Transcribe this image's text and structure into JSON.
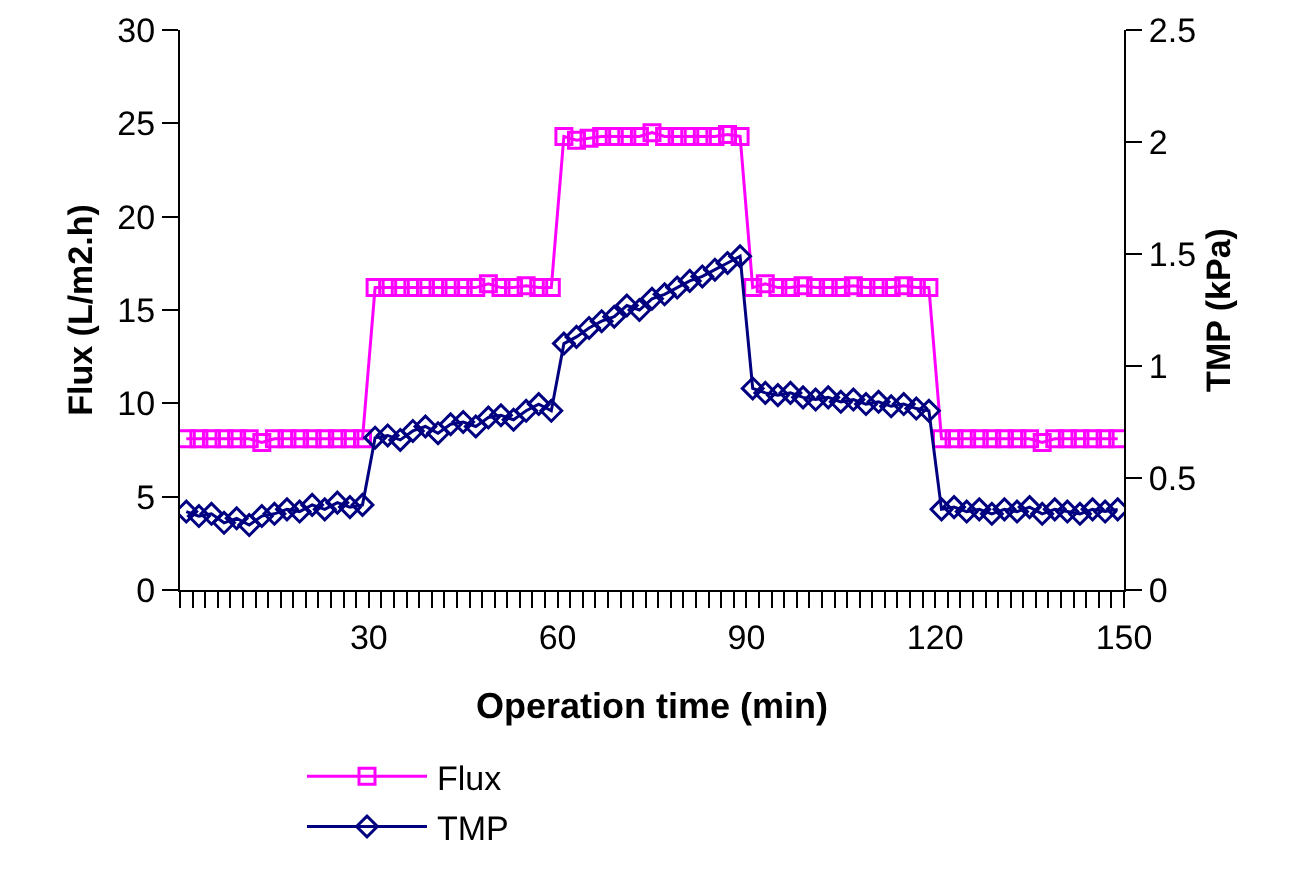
{
  "chart_data": {
    "type": "line",
    "xlabel": "Operation time (min)",
    "ylabel": "Flux (L/m2.h)",
    "y2label": "TMP (kPa)",
    "x": [
      1,
      3,
      5,
      7,
      9,
      11,
      13,
      15,
      17,
      19,
      21,
      23,
      25,
      27,
      29,
      31,
      33,
      35,
      37,
      39,
      41,
      43,
      45,
      47,
      49,
      51,
      53,
      55,
      57,
      59,
      61,
      63,
      65,
      67,
      69,
      71,
      73,
      75,
      77,
      79,
      81,
      83,
      85,
      87,
      89,
      91,
      93,
      95,
      97,
      99,
      101,
      103,
      105,
      107,
      109,
      111,
      113,
      115,
      117,
      119,
      121,
      123,
      125,
      127,
      129,
      131,
      133,
      135,
      137,
      139,
      141,
      143,
      145,
      147,
      149
    ],
    "series": [
      {
        "name": "Flux",
        "color": "#ff00ff",
        "marker": "square",
        "values": [
          8.1,
          8.1,
          8.1,
          8.1,
          8.1,
          8.1,
          7.9,
          8.1,
          8.1,
          8.1,
          8.1,
          8.1,
          8.1,
          8.1,
          8.1,
          16.2,
          16.2,
          16.2,
          16.2,
          16.2,
          16.2,
          16.2,
          16.2,
          16.2,
          16.4,
          16.2,
          16.2,
          16.3,
          16.2,
          16.2,
          24.3,
          24.1,
          24.2,
          24.3,
          24.3,
          24.3,
          24.3,
          24.5,
          24.3,
          24.3,
          24.3,
          24.3,
          24.3,
          24.4,
          24.3,
          16.2,
          16.4,
          16.2,
          16.2,
          16.3,
          16.2,
          16.2,
          16.2,
          16.3,
          16.2,
          16.2,
          16.2,
          16.3,
          16.2,
          16.2,
          8.1,
          8.1,
          8.1,
          8.1,
          8.1,
          8.1,
          8.1,
          8.1,
          7.9,
          8.1,
          8.1,
          8.1,
          8.1,
          8.1,
          8.1
        ]
      },
      {
        "name": "TMP",
        "color": "#000080",
        "marker": "diamond",
        "axis": "y2",
        "values": [
          0.35,
          0.33,
          0.34,
          0.3,
          0.32,
          0.29,
          0.33,
          0.34,
          0.36,
          0.35,
          0.38,
          0.36,
          0.39,
          0.37,
          0.38,
          0.68,
          0.69,
          0.67,
          0.71,
          0.73,
          0.7,
          0.74,
          0.75,
          0.73,
          0.77,
          0.78,
          0.76,
          0.8,
          0.83,
          0.8,
          1.1,
          1.13,
          1.17,
          1.2,
          1.22,
          1.27,
          1.25,
          1.3,
          1.32,
          1.35,
          1.38,
          1.4,
          1.43,
          1.46,
          1.49,
          0.9,
          0.88,
          0.87,
          0.88,
          0.86,
          0.85,
          0.86,
          0.84,
          0.85,
          0.83,
          0.84,
          0.82,
          0.83,
          0.81,
          0.8,
          0.36,
          0.37,
          0.35,
          0.36,
          0.34,
          0.36,
          0.35,
          0.37,
          0.34,
          0.36,
          0.35,
          0.34,
          0.36,
          0.35,
          0.36
        ]
      }
    ],
    "xlim": [
      0,
      150
    ],
    "xticks": [
      {
        "value": 0,
        "label": null
      },
      {
        "value": 2,
        "label": null
      },
      {
        "value": 4,
        "label": null
      },
      {
        "value": 6,
        "label": null
      },
      {
        "value": 8,
        "label": null
      },
      {
        "value": 10,
        "label": null
      },
      {
        "value": 12,
        "label": null
      },
      {
        "value": 14,
        "label": null
      },
      {
        "value": 16,
        "label": null
      },
      {
        "value": 18,
        "label": null
      },
      {
        "value": 20,
        "label": null
      },
      {
        "value": 22,
        "label": null
      },
      {
        "value": 24,
        "label": null
      },
      {
        "value": 26,
        "label": null
      },
      {
        "value": 28,
        "label": null
      },
      30,
      {
        "value": 32,
        "label": null
      },
      {
        "value": 34,
        "label": null
      },
      {
        "value": 36,
        "label": null
      },
      {
        "value": 38,
        "label": null
      },
      {
        "value": 40,
        "label": null
      },
      {
        "value": 42,
        "label": null
      },
      {
        "value": 44,
        "label": null
      },
      {
        "value": 46,
        "label": null
      },
      {
        "value": 48,
        "label": null
      },
      {
        "value": 50,
        "label": null
      },
      {
        "value": 52,
        "label": null
      },
      {
        "value": 54,
        "label": null
      },
      {
        "value": 56,
        "label": null
      },
      {
        "value": 58,
        "label": null
      },
      60,
      {
        "value": 62,
        "label": null
      },
      {
        "value": 64,
        "label": null
      },
      {
        "value": 66,
        "label": null
      },
      {
        "value": 68,
        "label": null
      },
      {
        "value": 70,
        "label": null
      },
      {
        "value": 72,
        "label": null
      },
      {
        "value": 74,
        "label": null
      },
      {
        "value": 76,
        "label": null
      },
      {
        "value": 78,
        "label": null
      },
      {
        "value": 80,
        "label": null
      },
      {
        "value": 82,
        "label": null
      },
      {
        "value": 84,
        "label": null
      },
      {
        "value": 86,
        "label": null
      },
      {
        "value": 88,
        "label": null
      },
      90,
      {
        "value": 92,
        "label": null
      },
      {
        "value": 94,
        "label": null
      },
      {
        "value": 96,
        "label": null
      },
      {
        "value": 98,
        "label": null
      },
      {
        "value": 100,
        "label": null
      },
      {
        "value": 102,
        "label": null
      },
      {
        "value": 104,
        "label": null
      },
      {
        "value": 106,
        "label": null
      },
      {
        "value": 108,
        "label": null
      },
      {
        "value": 110,
        "label": null
      },
      {
        "value": 112,
        "label": null
      },
      {
        "value": 114,
        "label": null
      },
      {
        "value": 116,
        "label": null
      },
      {
        "value": 118,
        "label": null
      },
      120,
      {
        "value": 122,
        "label": null
      },
      {
        "value": 124,
        "label": null
      },
      {
        "value": 126,
        "label": null
      },
      {
        "value": 128,
        "label": null
      },
      {
        "value": 130,
        "label": null
      },
      {
        "value": 132,
        "label": null
      },
      {
        "value": 134,
        "label": null
      },
      {
        "value": 136,
        "label": null
      },
      {
        "value": 138,
        "label": null
      },
      {
        "value": 140,
        "label": null
      },
      {
        "value": 142,
        "label": null
      },
      {
        "value": 144,
        "label": null
      },
      {
        "value": 146,
        "label": null
      },
      {
        "value": 148,
        "label": null
      },
      150
    ],
    "ylim": [
      0,
      30
    ],
    "yticks": [
      0,
      5,
      10,
      15,
      20,
      25,
      30
    ],
    "y2lim": [
      0,
      2.5
    ],
    "y2ticks": [
      0,
      0.5,
      1,
      1.5,
      2,
      2.5
    ],
    "grid": false,
    "legend": "bottom",
    "line_style": "solid"
  }
}
